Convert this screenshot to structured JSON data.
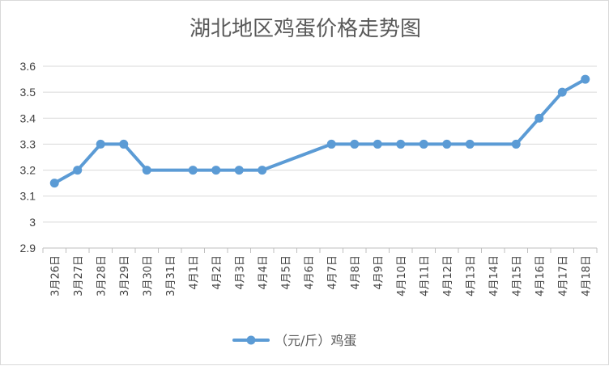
{
  "chart_data": {
    "type": "line",
    "title": "湖北地区鸡蛋价格走势图",
    "categories": [
      "3月26日",
      "3月27日",
      "3月28日",
      "3月29日",
      "3月30日",
      "3月31日",
      "4月1日",
      "4月2日",
      "4月3日",
      "4月4日",
      "4月5日",
      "4月6日",
      "4月7日",
      "4月8日",
      "4月9日",
      "4月10日",
      "4月11日",
      "4月12日",
      "4月13日",
      "4月14日",
      "4月15日",
      "4月16日",
      "4月17日",
      "4月18日"
    ],
    "series": [
      {
        "name": "（元/斤）鸡蛋",
        "color": "#5b9bd5",
        "values": [
          3.15,
          3.2,
          3.3,
          3.3,
          3.2,
          null,
          3.2,
          3.2,
          3.2,
          3.2,
          null,
          null,
          3.3,
          3.3,
          3.3,
          3.3,
          3.3,
          3.3,
          3.3,
          null,
          3.3,
          3.4,
          3.5,
          3.55
        ]
      }
    ],
    "yticks": [
      "2.9",
      "3",
      "3.1",
      "3.2",
      "3.3",
      "3.4",
      "3.5",
      "3.6"
    ],
    "ylim": [
      2.9,
      3.6
    ],
    "grid": true,
    "legend": "bottom"
  }
}
